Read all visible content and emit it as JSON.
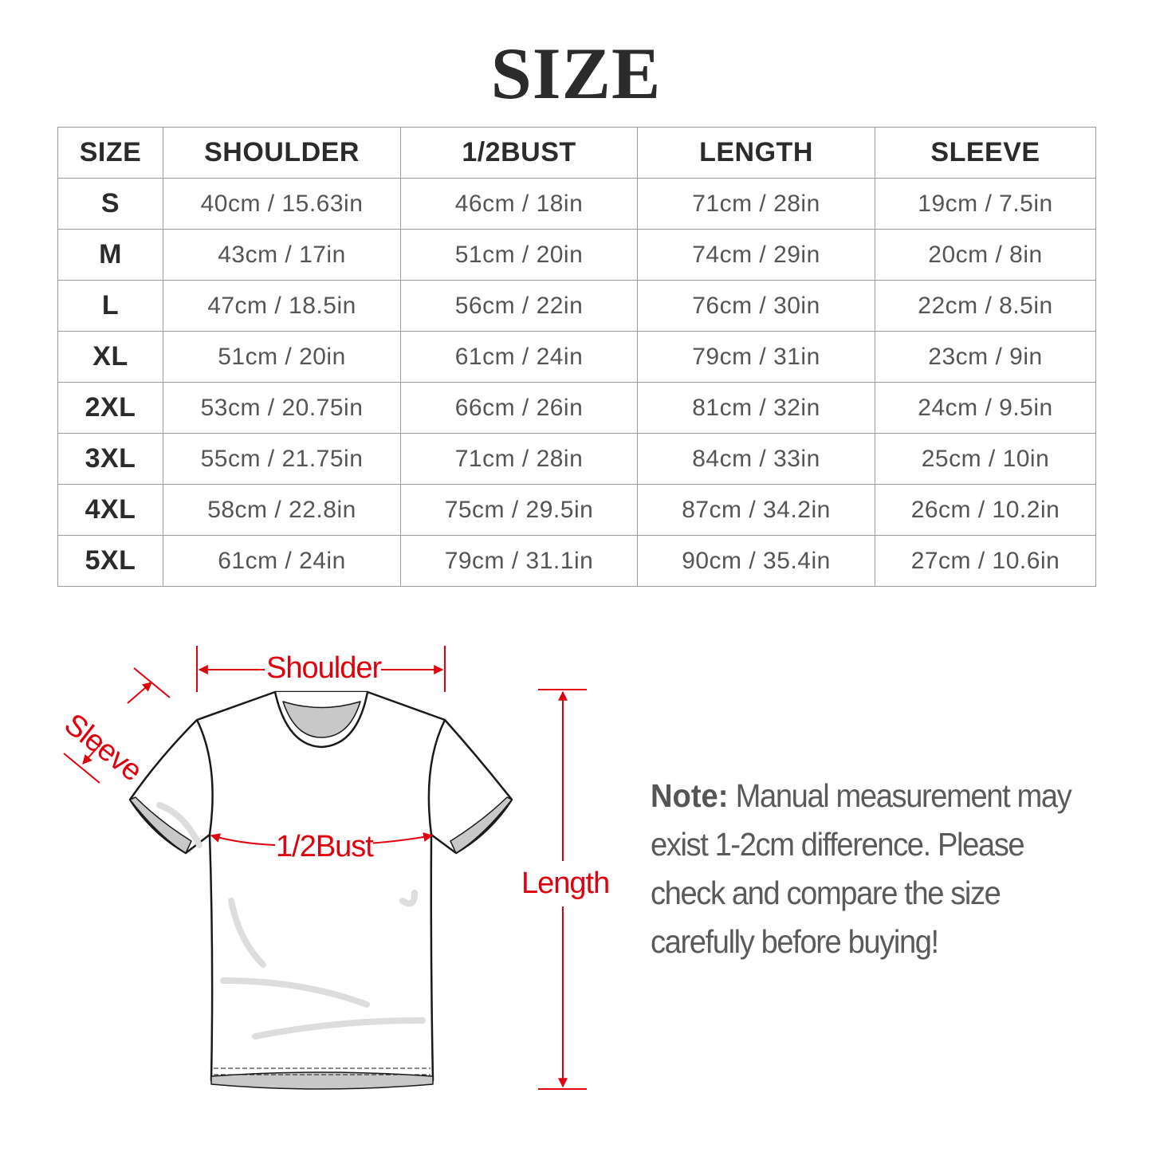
{
  "title": "SIZE",
  "table": {
    "headers": [
      "SIZE",
      "SHOULDER",
      "1/2BUST",
      "LENGTH",
      "SLEEVE"
    ],
    "rows": [
      [
        "S",
        "40cm / 15.63in",
        "46cm / 18in",
        "71cm / 28in",
        "19cm / 7.5in"
      ],
      [
        "M",
        "43cm / 17in",
        "51cm / 20in",
        "74cm / 29in",
        "20cm / 8in"
      ],
      [
        "L",
        "47cm / 18.5in",
        "56cm / 22in",
        "76cm / 30in",
        "22cm / 8.5in"
      ],
      [
        "XL",
        "51cm / 20in",
        "61cm / 24in",
        "79cm / 31in",
        "23cm / 9in"
      ],
      [
        "2XL",
        "53cm / 20.75in",
        "66cm / 26in",
        "81cm / 32in",
        "24cm / 9.5in"
      ],
      [
        "3XL",
        "55cm / 21.75in",
        "71cm / 28in",
        "84cm / 33in",
        "25cm / 10in"
      ],
      [
        "4XL",
        "58cm / 22.8in",
        "75cm / 29.5in",
        "87cm / 34.2in",
        "26cm / 10.2in"
      ],
      [
        "5XL",
        "61cm / 24in",
        "79cm / 31.1in",
        "90cm / 35.4in",
        "27cm / 10.6in"
      ]
    ]
  },
  "diagram": {
    "labels": {
      "shoulder": "Shoulder",
      "sleeve": "Sleeve",
      "bust": "1/2Bust",
      "length": "Length"
    },
    "accent_color": "#e0000d"
  },
  "note": {
    "label": "Note:",
    "text": "Manual measurement may exist 1-2cm difference. Please check and compare the size carefully before buying!"
  }
}
